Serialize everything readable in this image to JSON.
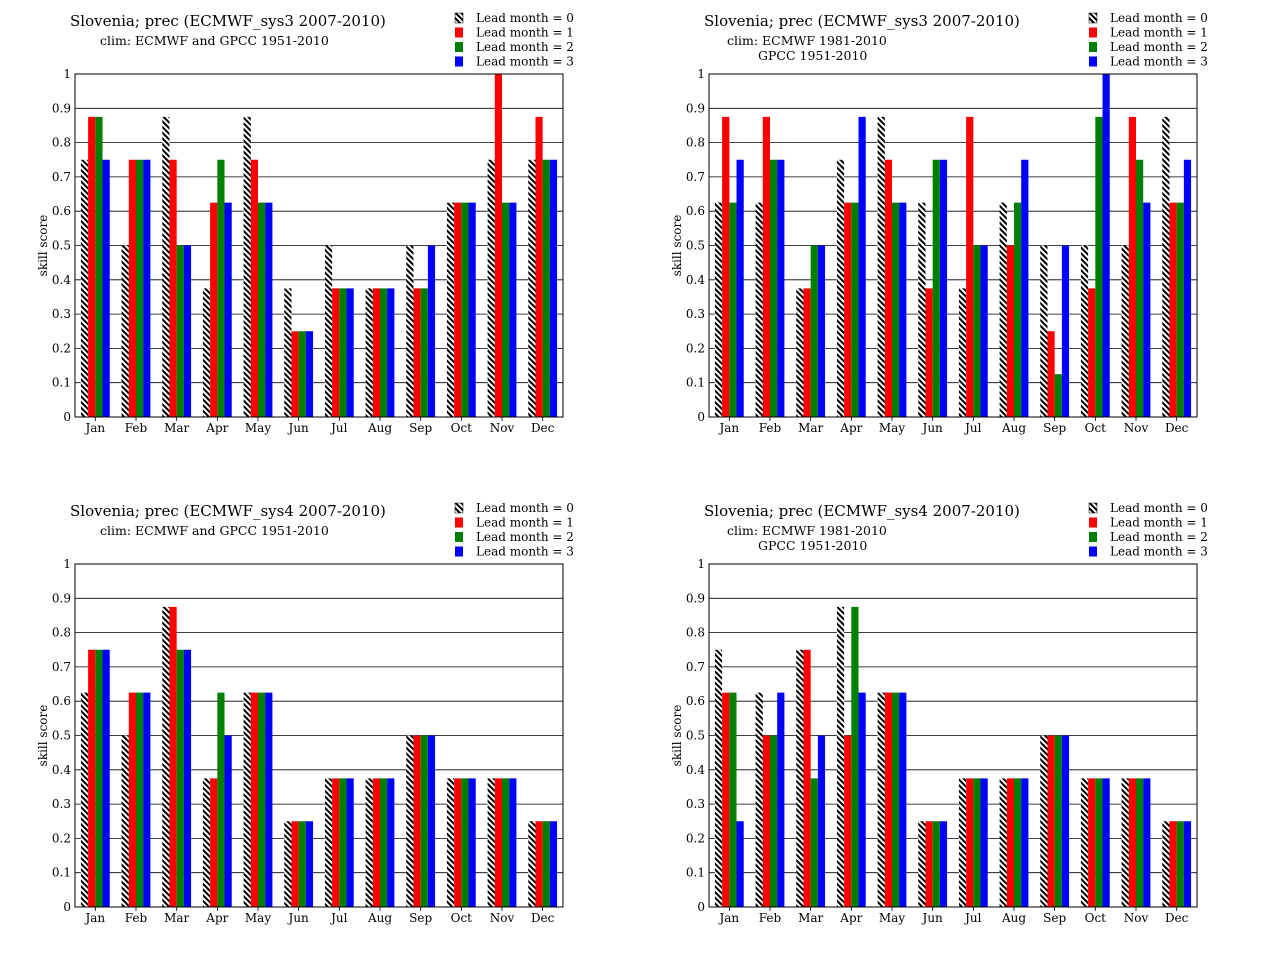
{
  "colors": {
    "lead1": "#ff0000",
    "lead2": "#008000",
    "lead3": "#0000ff",
    "lead0_pattern": "black-white-diagonal-hatch"
  },
  "chart_data": [
    {
      "type": "bar",
      "title": "Slovenia; prec (ECMWF_sys3 2007-2010)",
      "subtitle": [
        "clim: ECMWF and GPCC 1951-2010"
      ],
      "xlabel": "",
      "ylabel": "skill score",
      "ylim": [
        0,
        1
      ],
      "yticks": [
        "0",
        "0.1",
        "0.2",
        "0.3",
        "0.4",
        "0.5",
        "0.6",
        "0.7",
        "0.8",
        "0.9",
        "1"
      ],
      "grid": true,
      "legend_position": "top-right",
      "categories": [
        "Jan",
        "Feb",
        "Mar",
        "Apr",
        "May",
        "Jun",
        "Jul",
        "Aug",
        "Sep",
        "Oct",
        "Nov",
        "Dec"
      ],
      "series": [
        {
          "name": "Lead month = 0",
          "values": [
            0.75,
            0.5,
            0.875,
            0.375,
            0.875,
            0.375,
            0.5,
            0.375,
            0.5,
            0.625,
            0.75,
            0.75
          ]
        },
        {
          "name": "Lead month = 1",
          "values": [
            0.875,
            0.75,
            0.75,
            0.625,
            0.75,
            0.25,
            0.375,
            0.375,
            0.375,
            0.625,
            1.0,
            0.875
          ]
        },
        {
          "name": "Lead month = 2",
          "values": [
            0.875,
            0.75,
            0.5,
            0.75,
            0.625,
            0.25,
            0.375,
            0.375,
            0.375,
            0.625,
            0.625,
            0.75
          ]
        },
        {
          "name": "Lead month = 3",
          "values": [
            0.75,
            0.75,
            0.5,
            0.625,
            0.625,
            0.25,
            0.375,
            0.375,
            0.5,
            0.625,
            0.625,
            0.75
          ]
        }
      ]
    },
    {
      "type": "bar",
      "title": "Slovenia; prec (ECMWF_sys3 2007-2010)",
      "subtitle": [
        "clim: ECMWF 1981-2010",
        "GPCC 1951-2010"
      ],
      "xlabel": "",
      "ylabel": "skill score",
      "ylim": [
        0,
        1
      ],
      "yticks": [
        "0",
        "0.1",
        "0.2",
        "0.3",
        "0.4",
        "0.5",
        "0.6",
        "0.7",
        "0.8",
        "0.9",
        "1"
      ],
      "grid": true,
      "legend_position": "top-right",
      "categories": [
        "Jan",
        "Feb",
        "Mar",
        "Apr",
        "May",
        "Jun",
        "Jul",
        "Aug",
        "Sep",
        "Oct",
        "Nov",
        "Dec"
      ],
      "series": [
        {
          "name": "Lead month = 0",
          "values": [
            0.625,
            0.625,
            0.375,
            0.75,
            0.875,
            0.625,
            0.375,
            0.625,
            0.5,
            0.5,
            0.5,
            0.875
          ]
        },
        {
          "name": "Lead month = 1",
          "values": [
            0.875,
            0.875,
            0.375,
            0.625,
            0.75,
            0.375,
            0.875,
            0.5,
            0.25,
            0.375,
            0.875,
            0.625
          ]
        },
        {
          "name": "Lead month = 2",
          "values": [
            0.625,
            0.75,
            0.5,
            0.625,
            0.625,
            0.75,
            0.5,
            0.625,
            0.125,
            0.875,
            0.75,
            0.625
          ]
        },
        {
          "name": "Lead month = 3",
          "values": [
            0.75,
            0.75,
            0.5,
            0.875,
            0.625,
            0.75,
            0.5,
            0.75,
            0.5,
            1.0,
            0.625,
            0.75
          ]
        }
      ]
    },
    {
      "type": "bar",
      "title": "Slovenia; prec (ECMWF_sys4 2007-2010)",
      "subtitle": [
        "clim: ECMWF and GPCC 1951-2010"
      ],
      "xlabel": "",
      "ylabel": "skill score",
      "ylim": [
        0,
        1
      ],
      "yticks": [
        "0",
        "0.1",
        "0.2",
        "0.3",
        "0.4",
        "0.5",
        "0.6",
        "0.7",
        "0.8",
        "0.9",
        "1"
      ],
      "grid": true,
      "legend_position": "top-right",
      "categories": [
        "Jan",
        "Feb",
        "Mar",
        "Apr",
        "May",
        "Jun",
        "Jul",
        "Aug",
        "Sep",
        "Oct",
        "Nov",
        "Dec"
      ],
      "series": [
        {
          "name": "Lead month = 0",
          "values": [
            0.625,
            0.5,
            0.875,
            0.375,
            0.625,
            0.25,
            0.375,
            0.375,
            0.5,
            0.375,
            0.375,
            0.25
          ]
        },
        {
          "name": "Lead month = 1",
          "values": [
            0.75,
            0.625,
            0.875,
            0.375,
            0.625,
            0.25,
            0.375,
            0.375,
            0.5,
            0.375,
            0.375,
            0.25
          ]
        },
        {
          "name": "Lead month = 2",
          "values": [
            0.75,
            0.625,
            0.75,
            0.625,
            0.625,
            0.25,
            0.375,
            0.375,
            0.5,
            0.375,
            0.375,
            0.25
          ]
        },
        {
          "name": "Lead month = 3",
          "values": [
            0.75,
            0.625,
            0.75,
            0.5,
            0.625,
            0.25,
            0.375,
            0.375,
            0.5,
            0.375,
            0.375,
            0.25
          ]
        }
      ]
    },
    {
      "type": "bar",
      "title": "Slovenia; prec (ECMWF_sys4 2007-2010)",
      "subtitle": [
        "clim: ECMWF 1981-2010",
        "GPCC 1951-2010"
      ],
      "xlabel": "",
      "ylabel": "skill score",
      "ylim": [
        0,
        1
      ],
      "yticks": [
        "0",
        "0.1",
        "0.2",
        "0.3",
        "0.4",
        "0.5",
        "0.6",
        "0.7",
        "0.8",
        "0.9",
        "1"
      ],
      "grid": true,
      "legend_position": "top-right",
      "categories": [
        "Jan",
        "Feb",
        "Mar",
        "Apr",
        "May",
        "Jun",
        "Jul",
        "Aug",
        "Sep",
        "Oct",
        "Nov",
        "Dec"
      ],
      "series": [
        {
          "name": "Lead month = 0",
          "values": [
            0.75,
            0.625,
            0.75,
            0.875,
            0.625,
            0.25,
            0.375,
            0.375,
            0.5,
            0.375,
            0.375,
            0.25
          ]
        },
        {
          "name": "Lead month = 1",
          "values": [
            0.625,
            0.5,
            0.75,
            0.5,
            0.625,
            0.25,
            0.375,
            0.375,
            0.5,
            0.375,
            0.375,
            0.25
          ]
        },
        {
          "name": "Lead month = 2",
          "values": [
            0.625,
            0.5,
            0.375,
            0.875,
            0.625,
            0.25,
            0.375,
            0.375,
            0.5,
            0.375,
            0.375,
            0.25
          ]
        },
        {
          "name": "Lead month = 3",
          "values": [
            0.25,
            0.625,
            0.5,
            0.625,
            0.625,
            0.25,
            0.375,
            0.375,
            0.5,
            0.375,
            0.375,
            0.25
          ]
        }
      ]
    }
  ]
}
